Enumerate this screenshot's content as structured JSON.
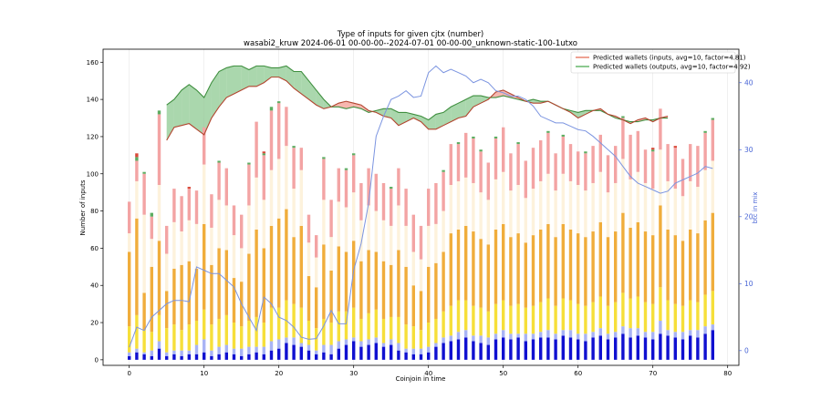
{
  "chart_data": {
    "type": "bar",
    "title": "Type of inputs for given cjtx (number)",
    "subtitle": "wasabi2_kruw 2024-06-01 00-00-00--2024-07-01 00-00-00_unknown-static-100-1utxo",
    "xlabel": "Coinjoin in time",
    "ylabel": "Number of inputs",
    "ylabel_right": "btc in mix",
    "xlim": [
      -3.5,
      81.5
    ],
    "ylim": [
      -3,
      167
    ],
    "ylim_right": [
      -2.2,
      45
    ],
    "xticks": [
      0,
      10,
      20,
      30,
      40,
      50,
      60,
      70,
      80
    ],
    "yticks": [
      0,
      20,
      40,
      60,
      80,
      100,
      120,
      140,
      160
    ],
    "yticks_right": [
      0,
      10,
      20,
      30,
      40
    ],
    "grid": "vertical",
    "legend": "top-right",
    "legend_entries": [
      "Predicted wallets (inputs, avg=10, factor=4.81)",
      "Predicted wallets (outputs, avg=10, factor=4.92)"
    ],
    "colors": {
      "blue": "#1010d0",
      "lightblue": "#a9b4f5",
      "yellow": "#f6df3a",
      "orange": "#f0ad3c",
      "cream": "#fdf2dc",
      "pink": "#f3a4a4",
      "green": "#5cad61",
      "red": "#d94a3a",
      "btc": "#7b94e0",
      "wallet_in": "#e8826f",
      "wallet_out": "#65b76a"
    },
    "x": [
      0,
      1,
      2,
      3,
      4,
      5,
      6,
      7,
      8,
      9,
      10,
      11,
      12,
      13,
      14,
      15,
      16,
      17,
      18,
      19,
      20,
      21,
      22,
      23,
      24,
      25,
      26,
      27,
      28,
      29,
      30,
      31,
      32,
      33,
      34,
      35,
      36,
      37,
      38,
      39,
      40,
      41,
      42,
      43,
      44,
      45,
      46,
      47,
      48,
      49,
      50,
      51,
      52,
      53,
      54,
      55,
      56,
      57,
      58,
      59,
      60,
      61,
      62,
      63,
      64,
      65,
      66,
      67,
      68,
      69,
      70,
      71,
      72,
      73,
      74,
      75,
      76,
      77,
      78
    ],
    "series": [
      {
        "key": "blue",
        "values": [
          2,
          4,
          3,
          2,
          6,
          2,
          3,
          2,
          3,
          3,
          4,
          2,
          3,
          4,
          3,
          2,
          3,
          4,
          3,
          5,
          6,
          9,
          8,
          7,
          5,
          3,
          4,
          3,
          6,
          8,
          10,
          7,
          8,
          9,
          7,
          8,
          5,
          4,
          3,
          3,
          4,
          7,
          9,
          10,
          11,
          12,
          10,
          9,
          8,
          11,
          12,
          11,
          12,
          10,
          11,
          12,
          12,
          11,
          13,
          12,
          11,
          10,
          12,
          13,
          11,
          12,
          14,
          12,
          13,
          12,
          11,
          14,
          13,
          12,
          11,
          13,
          12,
          14,
          16
        ]
      },
      {
        "key": "lightblue",
        "values": [
          2,
          2,
          1,
          3,
          4,
          2,
          2,
          3,
          2,
          5,
          7,
          3,
          4,
          4,
          3,
          4,
          4,
          3,
          4,
          5,
          5,
          3,
          4,
          2,
          3,
          2,
          4,
          5,
          4,
          3,
          2,
          3,
          3,
          3,
          2,
          3,
          4,
          2,
          3,
          3,
          3,
          2,
          3,
          3,
          4,
          4,
          3,
          4,
          4,
          3,
          4,
          3,
          2,
          4,
          3,
          3,
          4,
          3,
          3,
          4,
          3,
          4,
          3,
          4,
          3,
          3,
          4,
          5,
          4,
          3,
          4,
          7,
          3,
          3,
          4,
          3,
          4,
          4,
          3
        ]
      },
      {
        "key": "yellow",
        "values": [
          14,
          18,
          12,
          10,
          14,
          13,
          14,
          11,
          14,
          13,
          16,
          14,
          15,
          16,
          14,
          12,
          14,
          16,
          13,
          18,
          17,
          20,
          18,
          19,
          13,
          12,
          14,
          12,
          16,
          15,
          16,
          12,
          14,
          15,
          13,
          12,
          14,
          13,
          12,
          10,
          13,
          13,
          14,
          16,
          17,
          16,
          16,
          15,
          14,
          16,
          16,
          15,
          16,
          14,
          15,
          16,
          17,
          15,
          17,
          16,
          16,
          15,
          16,
          17,
          15,
          16,
          18,
          16,
          17,
          16,
          15,
          18,
          16,
          15,
          14,
          16,
          15,
          17,
          18
        ]
      },
      {
        "key": "orange",
        "values": [
          40,
          52,
          20,
          35,
          40,
          20,
          30,
          35,
          34,
          28,
          46,
          32,
          38,
          35,
          24,
          24,
          36,
          47,
          40,
          44,
          48,
          49,
          36,
          44,
          24,
          22,
          40,
          28,
          35,
          32,
          36,
          31,
          34,
          31,
          31,
          28,
          36,
          31,
          22,
          21,
          30,
          30,
          32,
          39,
          38,
          40,
          40,
          37,
          36,
          40,
          41,
          37,
          38,
          35,
          38,
          39,
          40,
          37,
          40,
          38,
          38,
          37,
          38,
          40,
          37,
          38,
          43,
          38,
          40,
          38,
          37,
          44,
          38,
          37,
          35,
          38,
          37,
          40,
          42
        ]
      },
      {
        "key": "cream",
        "values": [
          10,
          20,
          42,
          15,
          30,
          20,
          25,
          18,
          22,
          24,
          32,
          20,
          26,
          24,
          23,
          18,
          26,
          28,
          26,
          30,
          32,
          34,
          26,
          30,
          18,
          16,
          24,
          18,
          24,
          24,
          26,
          22,
          24,
          22,
          22,
          21,
          24,
          22,
          18,
          17,
          22,
          21,
          22,
          26,
          26,
          26,
          26,
          25,
          24,
          27,
          28,
          25,
          26,
          24,
          25,
          26,
          27,
          25,
          27,
          26,
          26,
          25,
          26,
          27,
          24,
          26,
          29,
          26,
          27,
          26,
          25,
          30,
          26,
          25,
          24,
          26,
          25,
          27,
          28
        ]
      },
      {
        "key": "pink",
        "values": [
          17,
          11,
          22,
          12,
          38,
          15,
          18,
          19,
          17,
          18,
          20,
          18,
          20,
          20,
          16,
          18,
          22,
          30,
          24,
          32,
          30,
          21,
          22,
          12,
          15,
          12,
          22,
          20,
          18,
          20,
          20,
          20,
          20,
          20,
          20,
          20,
          20,
          20,
          20,
          18,
          20,
          22,
          21,
          22,
          20,
          24,
          24,
          22,
          20,
          22,
          24,
          20,
          22,
          20,
          22,
          22,
          22,
          20,
          20,
          20,
          18,
          20,
          20,
          20,
          20,
          20,
          22,
          24,
          22,
          18,
          20,
          22,
          20,
          22,
          20,
          20,
          22,
          20,
          22
        ]
      },
      {
        "key": "green",
        "values": [
          0,
          2,
          1,
          2,
          2,
          0,
          0,
          0,
          0,
          0,
          0,
          0,
          1,
          0,
          0,
          0,
          1,
          0,
          1,
          2,
          1,
          0,
          1,
          0,
          0,
          0,
          1,
          0,
          0,
          1,
          1,
          0,
          0,
          0,
          0,
          1,
          0,
          0,
          0,
          0,
          0,
          0,
          1,
          0,
          1,
          0,
          1,
          1,
          0,
          1,
          0,
          0,
          1,
          0,
          0,
          0,
          1,
          0,
          1,
          0,
          0,
          1,
          0,
          0,
          0,
          0,
          1,
          0,
          0,
          0,
          1,
          0,
          0,
          0,
          0,
          0,
          0,
          1,
          1
        ]
      },
      {
        "key": "red",
        "values": [
          0,
          2,
          0,
          0,
          0,
          0,
          0,
          0,
          1,
          0,
          0,
          0,
          0,
          0,
          0,
          0,
          0,
          0,
          1,
          0,
          0,
          0,
          0,
          0,
          0,
          0,
          0,
          0,
          0,
          0,
          0,
          0,
          0,
          0,
          0,
          0,
          0,
          0,
          0,
          0,
          0,
          0,
          0,
          0,
          0,
          0,
          0,
          0,
          0,
          0,
          0,
          0,
          0,
          0,
          0,
          0,
          0,
          0,
          0,
          0,
          0,
          0,
          0,
          0,
          0,
          0,
          0,
          0,
          0,
          0,
          1,
          0,
          0,
          1,
          0,
          0,
          0,
          0,
          0
        ]
      }
    ],
    "btc_in_mix": [
      0.5,
      3.5,
      3,
      5,
      6,
      7,
      7.5,
      7.5,
      7.3,
      12.5,
      12,
      11.5,
      11.5,
      10.5,
      9.5,
      7,
      5,
      3,
      8,
      7,
      5,
      4.5,
      3.5,
      2,
      1.7,
      1.8,
      3.7,
      6,
      4,
      4,
      12,
      16,
      22,
      32,
      35,
      37.5,
      38,
      38.8,
      37.8,
      38,
      41.5,
      42.5,
      41.5,
      42,
      41.5,
      41,
      40,
      40.5,
      40,
      38.8,
      38.5,
      38,
      38,
      37.5,
      36.5,
      35,
      34.5,
      34,
      34,
      33.5,
      33,
      32.8,
      32,
      31,
      30,
      29,
      27.5,
      26,
      25,
      24.5,
      24,
      23.5,
      23.8,
      25,
      25.5,
      26,
      26.5,
      27.5,
      27.2
    ],
    "wallet_in": [
      null,
      null,
      null,
      null,
      null,
      118,
      125,
      126,
      127,
      124,
      121,
      130,
      136,
      141,
      143,
      145,
      147,
      147,
      149,
      152,
      152,
      150,
      146,
      143,
      140,
      137,
      135,
      136,
      138,
      139,
      138,
      137,
      134,
      133,
      131,
      130,
      126,
      128,
      130,
      128,
      124,
      124,
      126,
      128,
      130,
      131,
      136,
      138,
      140,
      144,
      145,
      143,
      141,
      139,
      138,
      138,
      139,
      137,
      135,
      133,
      130,
      132,
      134,
      135,
      132,
      131,
      129,
      127,
      129,
      130,
      128,
      130,
      131,
      null,
      null,
      null,
      null,
      null,
      null
    ],
    "wallet_out": [
      null,
      null,
      null,
      null,
      null,
      137,
      140,
      145,
      148,
      145,
      141,
      149,
      155,
      157,
      158,
      158,
      156,
      158,
      158,
      157,
      157,
      158,
      155,
      155,
      150,
      145,
      140,
      136,
      136,
      135,
      136,
      135,
      133,
      134,
      135,
      135,
      133,
      133,
      132,
      131,
      129,
      132,
      133,
      136,
      138,
      140,
      142,
      142,
      141,
      141,
      142,
      141,
      140,
      139,
      140,
      139,
      139,
      137,
      135,
      134,
      133,
      134,
      134,
      134,
      132,
      130,
      129,
      128,
      128,
      129,
      129,
      130,
      130,
      null,
      null,
      null,
      null,
      null,
      null
    ]
  }
}
